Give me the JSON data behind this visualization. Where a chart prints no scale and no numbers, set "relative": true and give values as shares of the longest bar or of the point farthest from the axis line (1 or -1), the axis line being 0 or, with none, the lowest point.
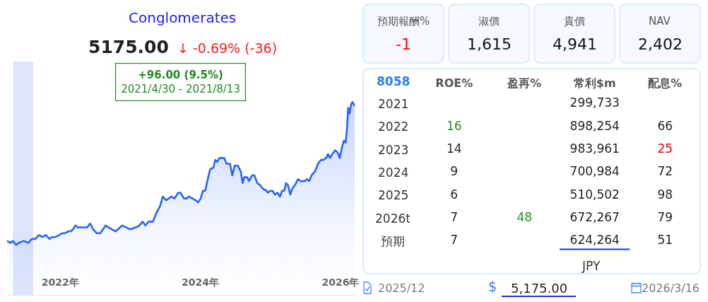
{
  "chart_data": [
    {
      "type": "area",
      "title": "Conglomerates",
      "subtitle": "5175.00 ↓ -0.69% (-36)",
      "annotations": [
        "+96.00 (9.5%)\n2021/4/30 - 2021/8/13"
      ],
      "x": [
        "2021-03-30",
        "2021-04-17",
        "2021-04-29",
        "2021-05-16",
        "2021-05-31",
        "2021-06-24",
        "2021-07-19",
        "2021-08-06",
        "2021-08-24",
        "2021-09-12",
        "2021-09-30",
        "2021-10-19",
        "2021-11-06",
        "2021-11-18",
        "2021-12-07",
        "2021-12-26",
        "2022-01-13",
        "2022-01-26",
        "2022-02-13",
        "2022-02-25",
        "2022-03-09",
        "2022-03-22",
        "2022-04-03",
        "2022-04-15",
        "2022-05-04",
        "2022-05-22",
        "2022-06-06",
        "2022-06-22",
        "2022-07-10",
        "2022-07-29",
        "2022-08-26",
        "2022-09-10",
        "2022-09-28",
        "2022-10-17",
        "2022-10-29",
        "2022-11-20",
        "2022-12-11",
        "2023-01-01",
        "2023-01-30",
        "2023-02-17",
        "2023-03-07",
        "2023-03-20",
        "2023-04-07",
        "2023-04-29",
        "2023-05-20",
        "2023-06-05",
        "2023-06-20",
        "2023-07-08",
        "2023-08-02",
        "2023-08-20",
        "2023-09-08",
        "2023-09-20",
        "2023-10-08",
        "2023-10-21",
        "2023-11-02",
        "2023-11-21",
        "2023-12-09",
        "2023-12-21",
        "2024-01-03",
        "2024-01-15",
        "2024-01-27",
        "2024-02-09",
        "2024-02-21",
        "2024-03-10",
        "2024-03-19",
        "2024-03-29",
        "2024-04-10",
        "2024-04-22",
        "2024-05-05",
        "2024-05-17",
        "2024-06-04",
        "2024-06-16",
        "2024-06-29",
        "2024-07-15",
        "2024-07-30",
        "2024-08-09",
        "2024-08-17",
        "2024-09-02",
        "2024-09-11",
        "2024-09-27",
        "2024-10-09",
        "2024-10-24",
        "2024-11-07",
        "2024-11-23",
        "2024-12-12",
        "2024-12-18",
        "2024-12-31",
        "2025-01-12",
        "2025-01-24",
        "2025-02-06",
        "2025-02-20",
        "2025-03-02",
        "2025-03-14",
        "2025-03-23",
        "2025-04-02",
        "2025-04-14",
        "2025-04-24",
        "2025-05-09",
        "2025-05-24",
        "2025-06-08",
        "2025-06-27",
        "2025-07-12",
        "2025-07-22",
        "2025-08-03",
        "2025-08-21",
        "2025-09-06",
        "2025-09-21",
        "2025-10-03",
        "2025-10-18",
        "2025-10-28",
        "2025-11-07",
        "2025-11-19",
        "2025-12-04",
        "2025-12-16",
        "2025-12-28",
        "2026-01-10",
        "2026-01-19",
        "2026-01-28",
        "2026-02-03",
        "2026-02-10",
        "2026-02-17",
        "2026-02-26",
        "2026-03-05",
        "2026-03-16"
      ],
      "series": [
        {
          "color": "#2962ff",
          "values": [
            0.28,
            0.27,
            0.28,
            0.26,
            0.27,
            0.28,
            0.27,
            0.29,
            0.29,
            0.31,
            0.3,
            0.31,
            0.29,
            0.3,
            0.3,
            0.31,
            0.32,
            0.32,
            0.33,
            0.33,
            0.34,
            0.36,
            0.35,
            0.35,
            0.35,
            0.35,
            0.37,
            0.34,
            0.32,
            0.32,
            0.36,
            0.35,
            0.34,
            0.33,
            0.34,
            0.36,
            0.35,
            0.34,
            0.35,
            0.36,
            0.38,
            0.36,
            0.38,
            0.38,
            0.43,
            0.46,
            0.51,
            0.49,
            0.51,
            0.5,
            0.53,
            0.53,
            0.5,
            0.5,
            0.51,
            0.5,
            0.49,
            0.48,
            0.5,
            0.54,
            0.54,
            0.6,
            0.65,
            0.66,
            0.7,
            0.69,
            0.71,
            0.71,
            0.71,
            0.68,
            0.68,
            0.62,
            0.67,
            0.67,
            0.64,
            0.58,
            0.61,
            0.61,
            0.59,
            0.62,
            0.62,
            0.58,
            0.57,
            0.55,
            0.54,
            0.53,
            0.54,
            0.54,
            0.52,
            0.53,
            0.51,
            0.54,
            0.54,
            0.58,
            0.57,
            0.52,
            0.55,
            0.57,
            0.6,
            0.59,
            0.59,
            0.6,
            0.59,
            0.62,
            0.64,
            0.68,
            0.7,
            0.7,
            0.71,
            0.73,
            0.71,
            0.73,
            0.75,
            0.74,
            0.71,
            0.77,
            0.8,
            0.79,
            0.85,
            0.97,
            0.94,
            0.99,
            1,
            0.98
          ]
        }
      ],
      "relative": true,
      "xlim": [
        "2021-03-30",
        "2026-03-16"
      ],
      "xticks": [
        {
          "value": "2022",
          "label": "2022年"
        },
        {
          "value": "2024",
          "label": "2024年"
        },
        {
          "value": "2026",
          "label": "2026年"
        }
      ],
      "tick_labels": "x",
      "bands": [
        {
          "axis": "x",
          "from": "2021-04-30",
          "to": "2021-08-13",
          "color": "#dde5fb"
        }
      ]
    },
    {
      "type": "other",
      "categories": [
        "預期報酬%",
        "淑價",
        "貴價",
        "NAV"
      ],
      "values": [
        -1,
        1615,
        4941,
        2402
      ],
      "value_labels": [
        "-1",
        "1,615",
        "4,941",
        "2,402"
      ]
    },
    {
      "type": "heatmap",
      "title": "8058",
      "categories": [
        "ROE%",
        "盈再%",
        "常利$m",
        "配息%"
      ],
      "y_categories": [
        "2021",
        "2022",
        "2023",
        "2024",
        "2025",
        "2026t",
        "預期"
      ],
      "cells": [
        [
          null,
          null,
          299733,
          null
        ],
        [
          16,
          null,
          898254,
          66
        ],
        [
          14,
          null,
          983961,
          25
        ],
        [
          9,
          null,
          700984,
          72
        ],
        [
          6,
          null,
          510502,
          98
        ],
        [
          7,
          48,
          672267,
          79
        ],
        [
          7,
          null,
          624264,
          51
        ]
      ],
      "cell_labels": [
        [
          null,
          null,
          "299,733",
          null
        ],
        [
          "16",
          null,
          "898,254",
          "66"
        ],
        [
          "14",
          null,
          "983,961",
          "25"
        ],
        [
          "9",
          null,
          "700,984",
          "72"
        ],
        [
          "6",
          null,
          "510,502",
          "98"
        ],
        [
          "7",
          "48",
          "672,267",
          "79"
        ],
        [
          "7",
          null,
          "624,264",
          "51"
        ]
      ],
      "colors": [
        [
          null,
          null,
          "#222222",
          null
        ],
        [
          "#228b22",
          null,
          "#222222",
          "#222222"
        ],
        [
          "#222222",
          null,
          "#222222",
          "#ff0000"
        ],
        [
          "#222222",
          null,
          "#222222",
          "#222222"
        ],
        [
          "#222222",
          null,
          "#222222",
          "#222222"
        ],
        [
          "#222222",
          "#228b22",
          "#222222",
          "#222222"
        ],
        [
          "#222222",
          null,
          "#222222",
          "#222222"
        ]
      ],
      "annotations": [
        "JPY",
        "2025/12",
        "$",
        "5,175.00",
        "2026/3/16"
      ]
    }
  ]
}
